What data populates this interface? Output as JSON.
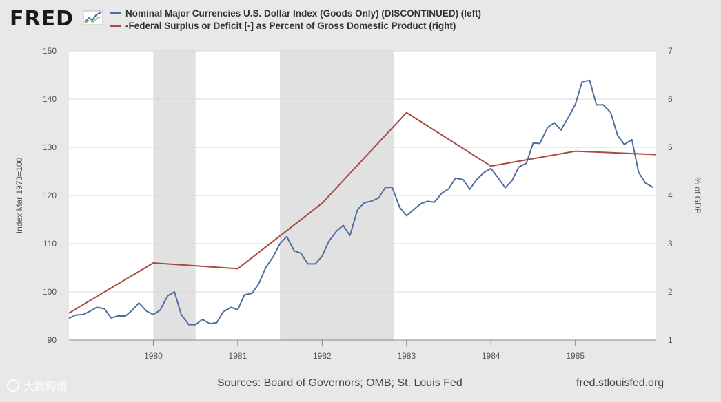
{
  "header": {
    "logo_text": "FRED"
  },
  "legend": [
    {
      "label": "Nominal Major Currencies U.S. Dollar Index (Goods Only) (DISCONTINUED) (left)",
      "color": "#4e6f9d"
    },
    {
      "label": "-Federal Surplus or Deficit [-] as Percent of Gross Domestic Product (right)",
      "color": "#a74a42"
    }
  ],
  "footer": {
    "sources": "Sources: Board of Governors; OMB; St. Louis Fed",
    "url": "fred.stlouisfed.org"
  },
  "watermark": {
    "text": "大数跨境"
  },
  "chart_data": {
    "type": "line",
    "title": "",
    "xlabel": "",
    "ylabel": "Index Mar 1973=100",
    "y2label": "% of GDP",
    "xlim": [
      1979.0,
      1985.95
    ],
    "ylim": [
      90,
      150
    ],
    "y2lim": [
      1,
      7
    ],
    "x_ticks": [
      "1980",
      "1981",
      "1982",
      "1983",
      "1984",
      "1985"
    ],
    "y_ticks": [
      "90",
      "100",
      "110",
      "120",
      "130",
      "140",
      "150"
    ],
    "y2_ticks": [
      "1",
      "2",
      "3",
      "4",
      "5",
      "6",
      "7"
    ],
    "recessions": [
      [
        1980.0,
        1980.5
      ],
      [
        1981.5,
        1982.85
      ]
    ],
    "series": [
      {
        "name": "Nominal Major Currencies U.S. Dollar Index (Goods Only) (DISCONTINUED)",
        "axis": "left",
        "color": "#4e6f9d",
        "x": [
          1979.0,
          1979.08,
          1979.17,
          1979.25,
          1979.33,
          1979.42,
          1979.5,
          1979.58,
          1979.67,
          1979.75,
          1979.83,
          1979.92,
          1980.0,
          1980.08,
          1980.17,
          1980.25,
          1980.33,
          1980.42,
          1980.5,
          1980.58,
          1980.67,
          1980.75,
          1980.83,
          1980.92,
          1981.0,
          1981.08,
          1981.17,
          1981.25,
          1981.33,
          1981.42,
          1981.5,
          1981.58,
          1981.67,
          1981.75,
          1981.83,
          1981.92,
          1982.0,
          1982.08,
          1982.17,
          1982.25,
          1982.33,
          1982.42,
          1982.5,
          1982.58,
          1982.67,
          1982.75,
          1982.83,
          1982.92,
          1983.0,
          1983.08,
          1983.17,
          1983.25,
          1983.33,
          1983.42,
          1983.5,
          1983.58,
          1983.67,
          1983.75,
          1983.83,
          1983.92,
          1984.0,
          1984.08,
          1984.17,
          1984.25,
          1984.33,
          1984.42,
          1984.5,
          1984.58,
          1984.67,
          1984.75,
          1984.83,
          1984.92,
          1985.0,
          1985.08,
          1985.17,
          1985.25,
          1985.33,
          1985.42,
          1985.5,
          1985.58,
          1985.67,
          1985.75,
          1985.83,
          1985.92
        ],
        "values": [
          94.5,
          95.2,
          95.3,
          96.0,
          96.8,
          96.5,
          94.6,
          95.0,
          95.0,
          96.2,
          97.7,
          96.0,
          95.3,
          96.2,
          99.2,
          100.0,
          95.3,
          93.2,
          93.2,
          94.3,
          93.4,
          93.6,
          95.9,
          96.8,
          96.3,
          99.4,
          99.7,
          101.7,
          105.0,
          107.3,
          110.0,
          111.5,
          108.5,
          108.0,
          105.8,
          105.8,
          107.4,
          110.5,
          112.6,
          113.8,
          111.7,
          117.1,
          118.5,
          118.8,
          119.5,
          121.7,
          121.7,
          117.5,
          115.8,
          117.0,
          118.3,
          118.8,
          118.6,
          120.5,
          121.4,
          123.6,
          123.3,
          121.3,
          123.3,
          124.8,
          125.6,
          123.8,
          121.6,
          123.1,
          125.9,
          126.7,
          130.9,
          130.8,
          134.1,
          135.1,
          133.6,
          136.3,
          138.9,
          143.6,
          143.9,
          138.8,
          138.8,
          137.2,
          132.5,
          130.6,
          131.6,
          124.8,
          122.6,
          121.7
        ]
      },
      {
        "name": "-Federal Surplus or Deficit [-] as Percent of Gross Domestic Product",
        "axis": "right",
        "color": "#a74a42",
        "x": [
          1979.0,
          1980.0,
          1981.0,
          1982.0,
          1983.0,
          1984.0,
          1985.0,
          1985.95
        ],
        "values": [
          1.56,
          2.6,
          2.48,
          3.84,
          5.72,
          4.61,
          4.92,
          4.85
        ]
      }
    ]
  }
}
